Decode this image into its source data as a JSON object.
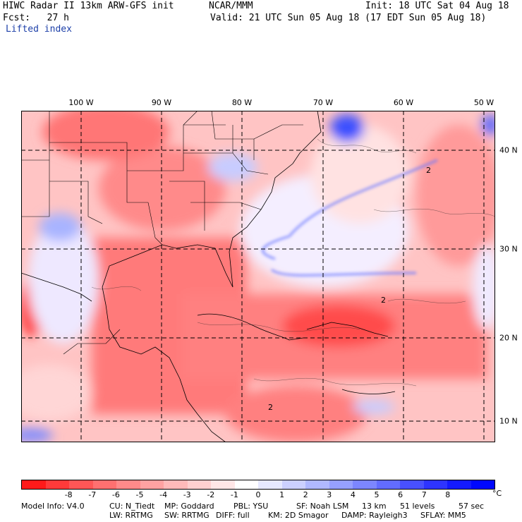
{
  "header": {
    "line1_left": "HIWC Radar II 13km ARW-GFS init",
    "line1_mid": "NCAR/MMM",
    "line1_right": "Init: 18 UTC Sat 04 Aug 18",
    "line2_left": "Fcst:   27 h",
    "line2_right": "Valid: 21 UTC Sun 05 Aug 18 (17 EDT Sun 05 Aug 18)",
    "field_name": "Lifted index"
  },
  "map": {
    "lon_labels": [
      "100 W",
      "90 W",
      "80 W",
      "70 W",
      "60 W",
      "50 W"
    ],
    "lat_labels": [
      "40 N",
      "30 N",
      "20 N",
      "10 N"
    ],
    "contour_label": "2"
  },
  "colorbar": {
    "colors": [
      "#ff1a1a",
      "#ff3a3a",
      "#ff5656",
      "#ff7070",
      "#ff8a8a",
      "#ffa2a2",
      "#ffbaba",
      "#ffd0d0",
      "#ffe6e6",
      "#ffffff",
      "#e6e8ff",
      "#ccd0ff",
      "#b0b8ff",
      "#96a0ff",
      "#7c86ff",
      "#626cff",
      "#4850ff",
      "#2e34ff",
      "#141aff",
      "#0008ff"
    ],
    "tick_labels": [
      "-8",
      "-7",
      "-6",
      "-5",
      "-4",
      "-3",
      "-2",
      "-1",
      "0",
      "1",
      "2",
      "3",
      "4",
      "5",
      "6",
      "7",
      "8"
    ],
    "unit": "°C"
  },
  "footer": {
    "model_info": "Model Info: V4.0",
    "cu": "CU: N_Tiedt",
    "mp": "MP: Goddard",
    "pbl": "PBL: YSU",
    "sf": "SF: Noah LSM",
    "res": "13 km",
    "levels": "51 levels",
    "dt": "57 sec",
    "lw": "LW: RRTMG",
    "sw": "SW: RRTMG",
    "diff": "DIFF: full",
    "km": "KM: 2D Smagor",
    "damp": "DAMP: Rayleigh3",
    "sflay": "SFLAY: MM5"
  }
}
